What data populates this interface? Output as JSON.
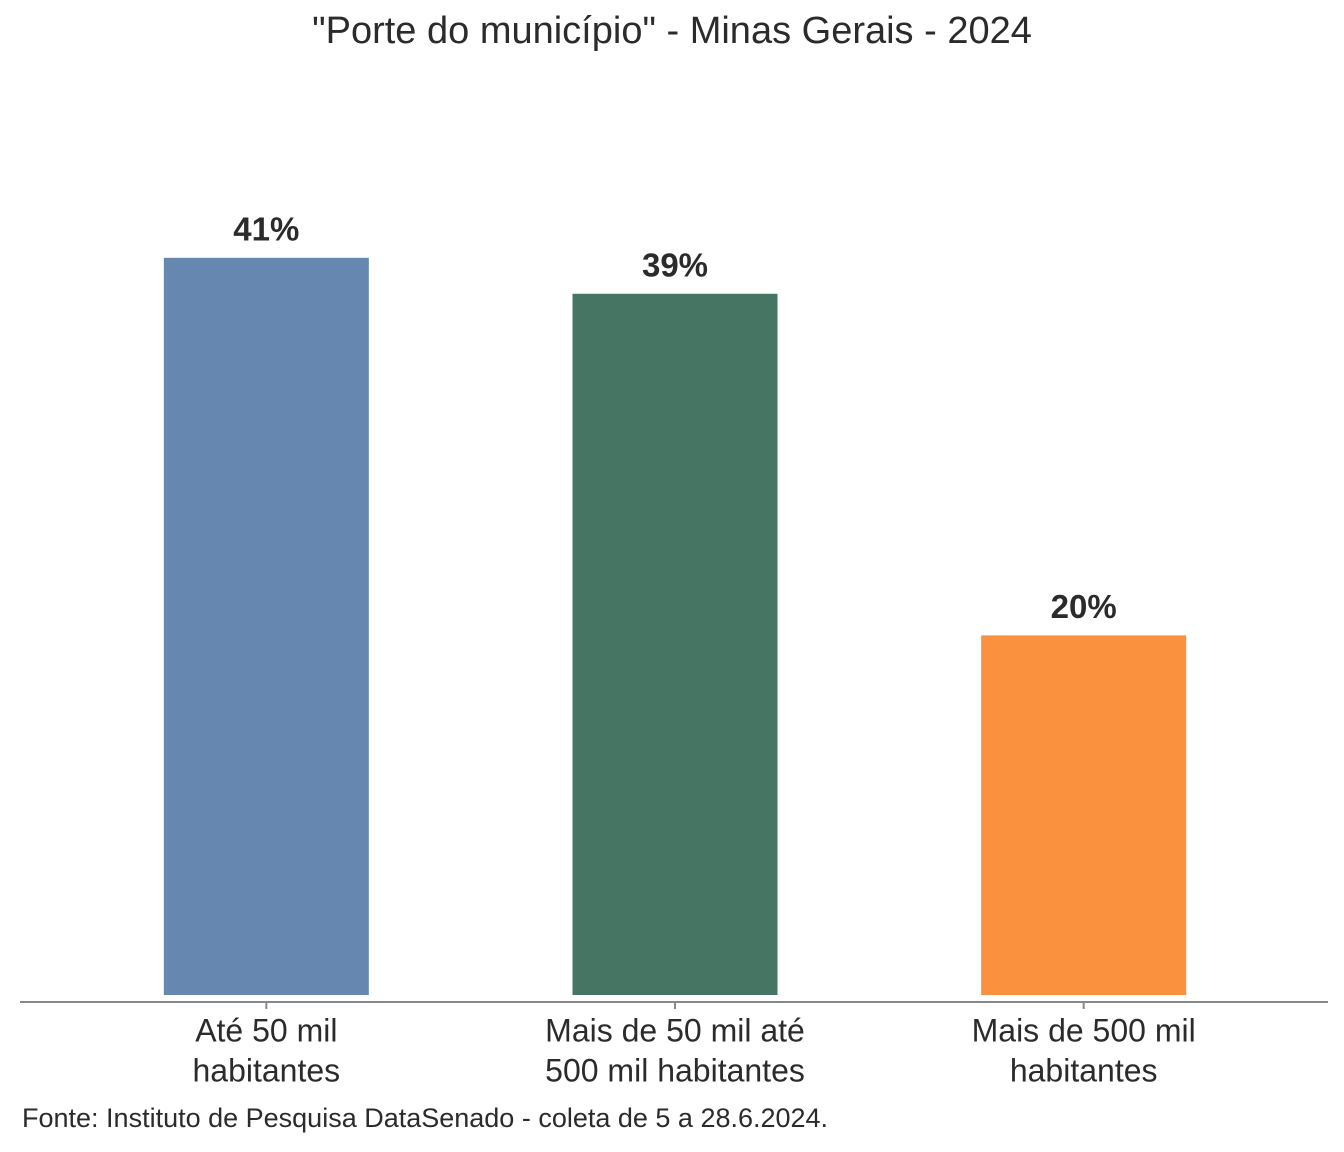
{
  "chart_data": {
    "type": "bar",
    "title": "\"Porte do município\" - Minas Gerais - 2024",
    "categories": [
      [
        "Até 50 mil",
        "habitantes"
      ],
      [
        "Mais de 50 mil até",
        "500 mil habitantes"
      ],
      [
        "Mais de 500 mil",
        "habitantes"
      ]
    ],
    "values": [
      41,
      39,
      20
    ],
    "value_labels": [
      "41%",
      "39%",
      "20%"
    ],
    "colors": [
      "#6688b0",
      "#467563",
      "#f9913e"
    ],
    "source": "Fonte: Instituto de Pesquisa DataSenado - coleta de 5 a 28.6.2024."
  }
}
